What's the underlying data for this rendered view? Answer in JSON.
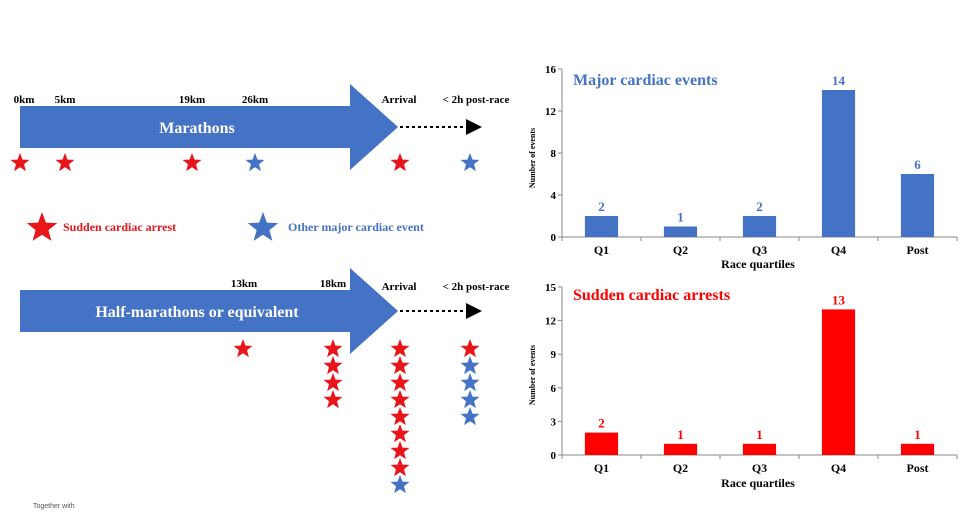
{
  "colors": {
    "blue": "#4472C4",
    "red": "#FF0000",
    "red_star": "#E8151B",
    "blue_star": "#4472C4"
  },
  "marathon": {
    "label": "Marathons",
    "km_labels": [
      "0km",
      "5km",
      "19km",
      "26km"
    ],
    "arrival_label": "Arrival",
    "post_label": "< 2h post-race",
    "stars": [
      {
        "at": "0km",
        "color": "red"
      },
      {
        "at": "5km",
        "color": "red"
      },
      {
        "at": "19km",
        "color": "red"
      },
      {
        "at": "26km",
        "color": "blue"
      },
      {
        "at": "Arrival",
        "color": "red"
      },
      {
        "at": "< 2h post-race",
        "color": "blue"
      }
    ]
  },
  "legend": {
    "sca_label": "Sudden  cardiac arrest",
    "other_label": "Other major cardiac event"
  },
  "half": {
    "label": "Half-marathons or equivalent",
    "km_labels": [
      "13km",
      "18km"
    ],
    "arrival_label": "Arrival",
    "post_label": "< 2h post-race",
    "star_columns": [
      {
        "at": "13km",
        "stars": [
          "red"
        ]
      },
      {
        "at": "18km",
        "stars": [
          "red",
          "red",
          "red",
          "red"
        ]
      },
      {
        "at": "Arrival",
        "stars": [
          "red",
          "red",
          "red",
          "red",
          "red",
          "red",
          "red",
          "red",
          "blue"
        ]
      },
      {
        "at": "< 2h post-race",
        "stars": [
          "red",
          "blue",
          "blue",
          "blue",
          "blue"
        ]
      }
    ]
  },
  "footer_text": "Together with",
  "chart_data": [
    {
      "type": "bar",
      "title": "Major cardiac events",
      "categories": [
        "Q1",
        "Q2",
        "Q3",
        "Q4",
        "Post"
      ],
      "values": [
        2,
        1,
        2,
        14,
        6
      ],
      "xlabel": "Race quartiles",
      "ylabel": "Number of events",
      "ylim": [
        0,
        16
      ],
      "yticks": [
        0,
        4,
        8,
        12,
        16
      ],
      "color": "#4472C4"
    },
    {
      "type": "bar",
      "title": "Sudden cardiac arrests",
      "categories": [
        "Q1",
        "Q2",
        "Q3",
        "Q4",
        "Post"
      ],
      "values": [
        2,
        1,
        1,
        13,
        1
      ],
      "xlabel": "Race quartiles",
      "ylabel": "Number of events",
      "ylim": [
        0,
        15
      ],
      "yticks": [
        0,
        3,
        6,
        9,
        12,
        15
      ],
      "color": "#FF0000"
    }
  ]
}
